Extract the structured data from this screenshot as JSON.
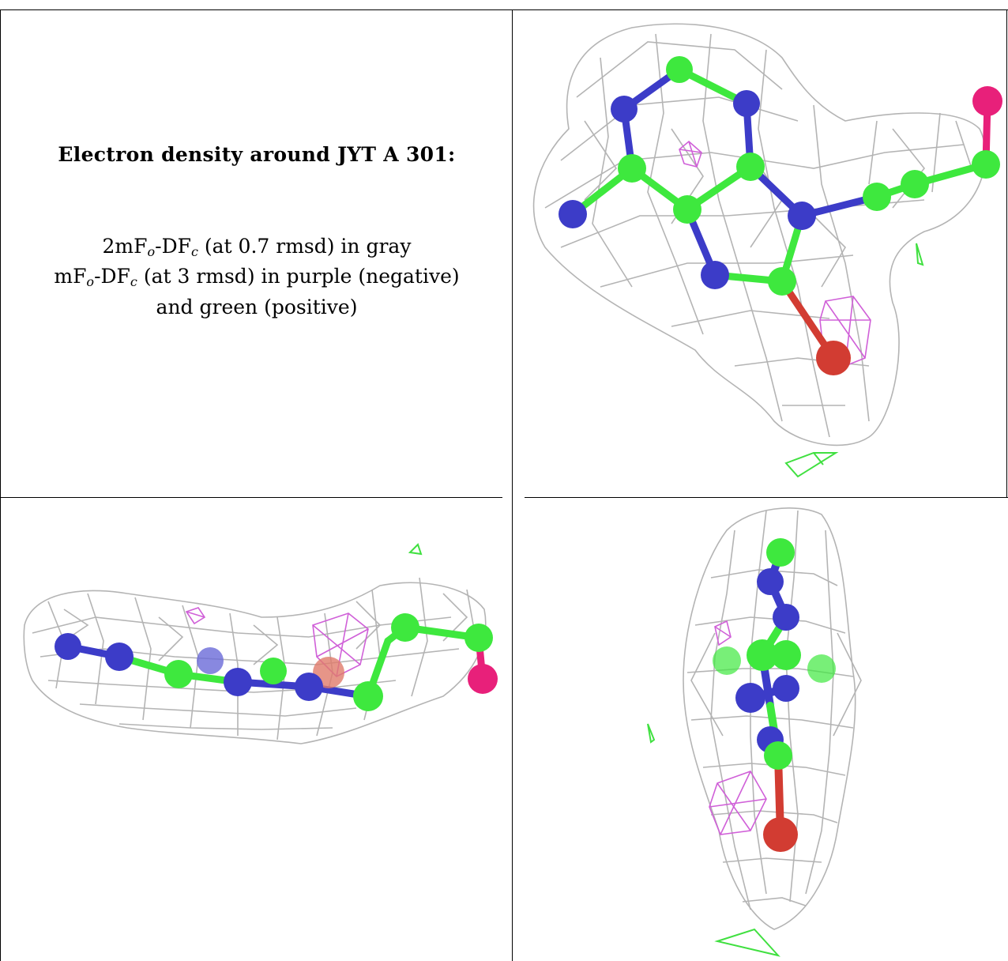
{
  "caption": {
    "title": "Electron density around JYT A 301:",
    "line1_a": "2mF",
    "line1_sub_o": "o",
    "line1_b": "-DF",
    "line1_sub_c": "c",
    "line1_rest": " (at 0.7 rmsd) in gray",
    "line2_a": "mF",
    "line2_sub_o": "o",
    "line2_b": "-DF",
    "line2_sub_c": "c",
    "line2_rest": " (at 3 rmsd) in purple (negative)",
    "line3": "and green (positive)"
  },
  "colors": {
    "mesh_2fofc": "#b4b4b4",
    "mesh_negative": "#d060d8",
    "mesh_positive": "#40e040",
    "carbon": "#3ee83e",
    "nitrogen": "#3c3cc8",
    "oxygen": "#d23c32",
    "iodine": "#e8207a",
    "border": "#000000"
  },
  "panels": [
    {
      "view": "top-view"
    },
    {
      "view": "side-view"
    },
    {
      "view": "end-view"
    }
  ]
}
